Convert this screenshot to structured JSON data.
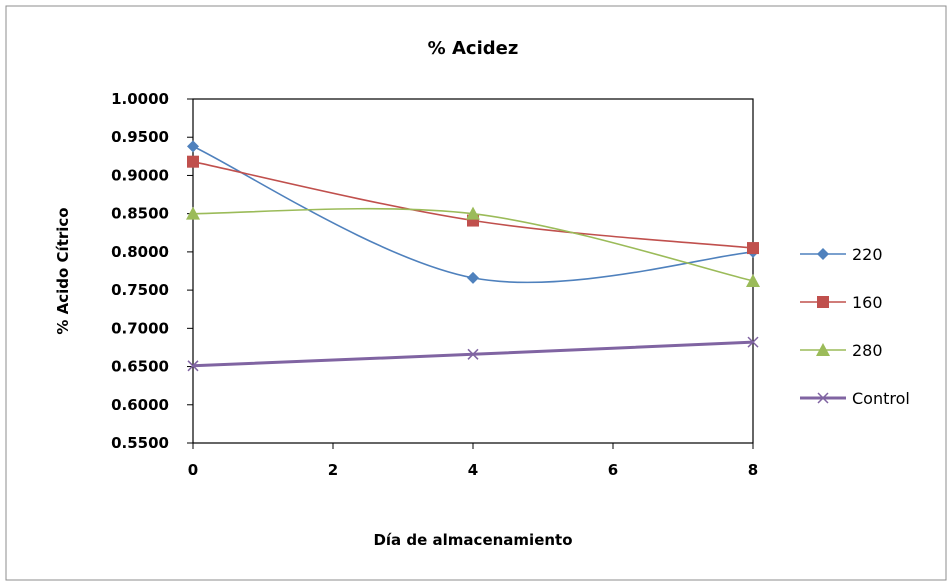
{
  "chart_data": {
    "type": "line",
    "title": "% Acidez",
    "xlabel": "Día de almacenamiento",
    "ylabel": "% Acido Cítrico",
    "xlim": [
      0,
      8
    ],
    "ylim": [
      0.55,
      1.0
    ],
    "xticks": [
      0,
      2,
      4,
      6,
      8
    ],
    "xtick_labels": [
      "0",
      "2",
      "4",
      "6",
      "8"
    ],
    "yticks": [
      0.55,
      0.6,
      0.65,
      0.7,
      0.75,
      0.8,
      0.85,
      0.9,
      0.95,
      1.0
    ],
    "ytick_labels": [
      "0.5500",
      "0.6000",
      "0.6500",
      "0.7000",
      "0.7500",
      "0.8000",
      "0.8500",
      "0.9000",
      "0.9500",
      "1.0000"
    ],
    "grid": false,
    "legend_position": "right",
    "x": [
      0,
      4,
      8
    ],
    "series": [
      {
        "name": "220",
        "values": [
          0.938,
          0.766,
          0.8
        ],
        "color": "#4f81bd",
        "marker": "diamond",
        "smooth": true
      },
      {
        "name": "160",
        "values": [
          0.918,
          0.841,
          0.805
        ],
        "color": "#c0504d",
        "marker": "square",
        "smooth": true
      },
      {
        "name": "280",
        "values": [
          0.85,
          0.85,
          0.762
        ],
        "color": "#9bbb59",
        "marker": "triangle",
        "smooth": true
      },
      {
        "name": "Control",
        "values": [
          0.651,
          0.666,
          0.682
        ],
        "color": "#8064a2",
        "marker": "x",
        "smooth": false
      }
    ]
  }
}
